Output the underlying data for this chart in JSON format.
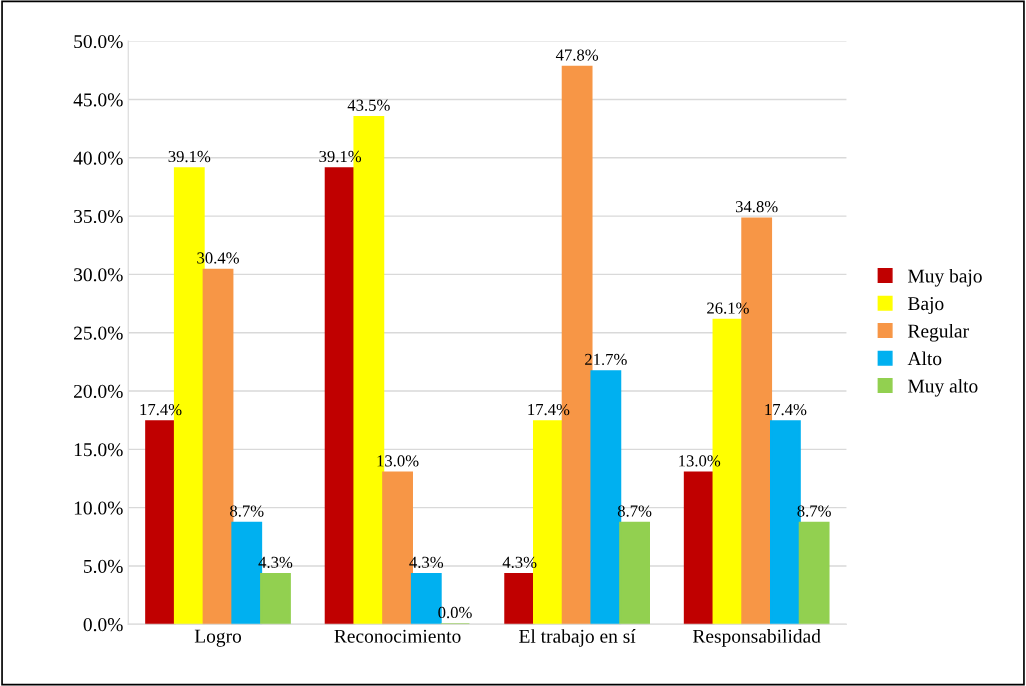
{
  "chart_data": {
    "type": "bar",
    "categories": [
      "Logro",
      "Reconocimiento",
      "El trabajo en sí",
      "Responsabilidad"
    ],
    "series": [
      {
        "name": "Muy bajo",
        "color": "#c00000",
        "values": [
          17.4,
          39.1,
          4.3,
          13.0
        ],
        "value_labels": [
          "17.4%",
          "39.1%",
          "4.3%",
          "13.0%"
        ]
      },
      {
        "name": "Bajo",
        "color": "#ffff00",
        "values": [
          39.1,
          43.5,
          17.4,
          26.1
        ],
        "value_labels": [
          "39.1%",
          "43.5%",
          "17.4%",
          "26.1%"
        ]
      },
      {
        "name": "Regular",
        "color": "#f79646",
        "values": [
          30.4,
          13.0,
          47.8,
          34.8
        ],
        "value_labels": [
          "30.4%",
          "13.0%",
          "47.8%",
          "34.8%"
        ]
      },
      {
        "name": "Alto",
        "color": "#00b0f0",
        "values": [
          8.7,
          4.3,
          21.7,
          17.4
        ],
        "value_labels": [
          "8.7%",
          "4.3%",
          "21.7%",
          "17.4%"
        ]
      },
      {
        "name": "Muy alto",
        "color": "#92d050",
        "values": [
          4.3,
          0.0,
          8.7,
          8.7
        ],
        "value_labels": [
          "4.3%",
          "0.0%",
          "8.7%",
          "8.7%"
        ]
      }
    ],
    "ylim": [
      0,
      50
    ],
    "yticks": [
      {
        "value": 0,
        "label": "0.0%"
      },
      {
        "value": 5,
        "label": "5.0%"
      },
      {
        "value": 10,
        "label": "10.0%"
      },
      {
        "value": 15,
        "label": "15.0%"
      },
      {
        "value": 20,
        "label": "20.0%"
      },
      {
        "value": 25,
        "label": "25.0%"
      },
      {
        "value": 30,
        "label": "30.0%"
      },
      {
        "value": 35,
        "label": "35.0%"
      },
      {
        "value": 40,
        "label": "40.0%"
      },
      {
        "value": 45,
        "label": "45.0%"
      },
      {
        "value": 50,
        "label": "50.0%"
      }
    ],
    "grid": "y",
    "legend": "right"
  }
}
